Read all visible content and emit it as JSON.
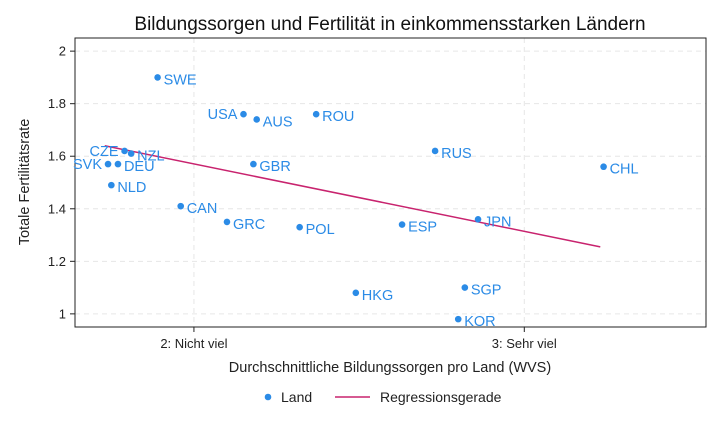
{
  "chart_data": {
    "type": "scatter",
    "title": "Bildungssorgen und Fertilität in einkommensstarken Ländern",
    "xlabel": "Durchschnittliche Bildungssorgen pro Land (WVS)",
    "ylabel": "Totale Fertilitätsrate",
    "xlim": [
      1.64,
      3.55
    ],
    "ylim": [
      0.95,
      2.05
    ],
    "x_ticks": [
      {
        "value": 2,
        "label": "2: Nicht viel"
      },
      {
        "value": 3,
        "label": "3: Sehr viel"
      }
    ],
    "y_ticks": [
      {
        "value": 1,
        "label": "1"
      },
      {
        "value": 1.2,
        "label": "1.2"
      },
      {
        "value": 1.4,
        "label": "1.4"
      },
      {
        "value": 1.6,
        "label": "1.6"
      },
      {
        "value": 1.8,
        "label": "1.8"
      },
      {
        "value": 2,
        "label": "2"
      }
    ],
    "grid": true,
    "legend_position": "bottom",
    "series": [
      {
        "name": "Land",
        "color": "#2b8be6",
        "points": [
          {
            "label": "SWE",
            "x": 1.89,
            "y": 1.9
          },
          {
            "label": "USA",
            "x": 2.15,
            "y": 1.76
          },
          {
            "label": "AUS",
            "x": 2.19,
            "y": 1.74
          },
          {
            "label": "ROU",
            "x": 2.37,
            "y": 1.76
          },
          {
            "label": "CZE",
            "x": 1.79,
            "y": 1.62
          },
          {
            "label": "NZL",
            "x": 1.81,
            "y": 1.61
          },
          {
            "label": "SVK",
            "x": 1.74,
            "y": 1.57
          },
          {
            "label": "DEU",
            "x": 1.77,
            "y": 1.57
          },
          {
            "label": "GBR",
            "x": 2.18,
            "y": 1.57
          },
          {
            "label": "NLD",
            "x": 1.75,
            "y": 1.49
          },
          {
            "label": "RUS",
            "x": 2.73,
            "y": 1.62
          },
          {
            "label": "CHL",
            "x": 3.24,
            "y": 1.56
          },
          {
            "label": "CAN",
            "x": 1.96,
            "y": 1.41
          },
          {
            "label": "GRC",
            "x": 2.1,
            "y": 1.35
          },
          {
            "label": "POL",
            "x": 2.32,
            "y": 1.33
          },
          {
            "label": "ESP",
            "x": 2.63,
            "y": 1.34
          },
          {
            "label": "JPN",
            "x": 2.86,
            "y": 1.36
          },
          {
            "label": "HKG",
            "x": 2.49,
            "y": 1.08
          },
          {
            "label": "SGP",
            "x": 2.82,
            "y": 1.1
          },
          {
            "label": "KOR",
            "x": 2.8,
            "y": 0.98
          }
        ]
      },
      {
        "name": "Regressionsgerade",
        "type": "line",
        "color": "#c8236e",
        "points": [
          {
            "x": 1.73,
            "y": 1.64
          },
          {
            "x": 3.23,
            "y": 1.255
          }
        ]
      }
    ]
  }
}
